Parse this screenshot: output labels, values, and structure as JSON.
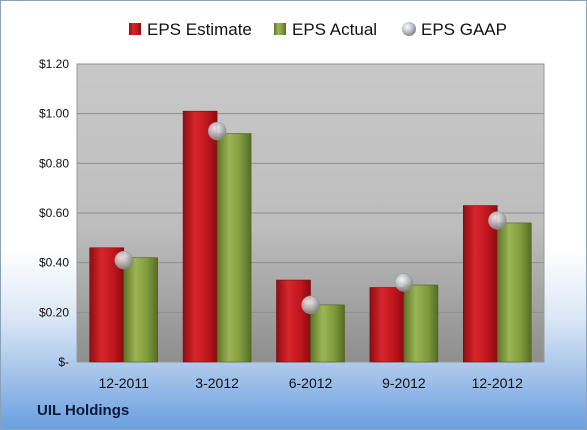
{
  "company": "UIL Holdings",
  "chart_data": {
    "type": "bar",
    "categories": [
      "12-2011",
      "3-2012",
      "6-2012",
      "9-2012",
      "12-2012"
    ],
    "series": [
      {
        "name": "EPS Estimate",
        "values": [
          0.46,
          1.01,
          0.33,
          0.3,
          0.63
        ],
        "color": "#c0161e"
      },
      {
        "name": "EPS Actual",
        "values": [
          0.42,
          0.92,
          0.23,
          0.31,
          0.56
        ],
        "color": "#7f9a3c"
      },
      {
        "name": "EPS GAAP",
        "values": [
          0.41,
          0.93,
          0.23,
          0.32,
          0.57
        ],
        "color": "#b9bcc2",
        "marker": "sphere"
      }
    ],
    "yticks": [
      "$-",
      "$0.20",
      "$0.40",
      "$0.60",
      "$0.80",
      "$1.00",
      "$1.20"
    ],
    "ylim": [
      0,
      1.2
    ],
    "grid": true,
    "legend": "top"
  }
}
